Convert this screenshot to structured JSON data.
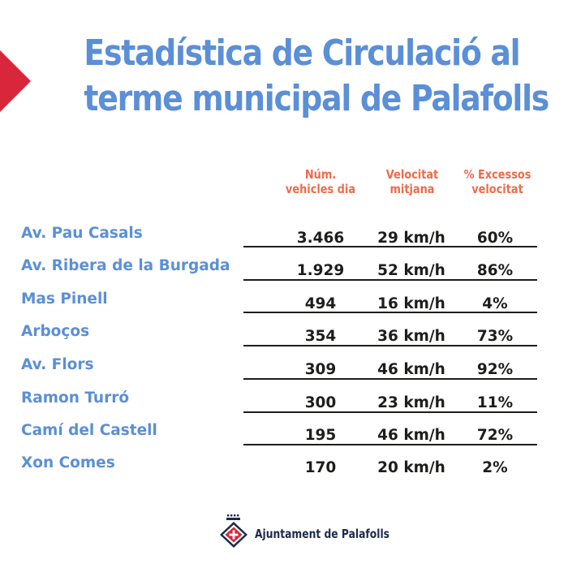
{
  "title": {
    "line1": "Estadística de Circulació al",
    "line2": "terme municipal de Palafolls"
  },
  "columns": {
    "vehicles": [
      "Núm.",
      "vehicles dia"
    ],
    "speed": [
      "Velocitat",
      "mitjana"
    ],
    "excess": [
      "% Excessos",
      "velocitat"
    ]
  },
  "rows": [
    {
      "street": "Av. Pau Casals",
      "vehicles": "3.466",
      "speed": "29 km/h",
      "excess": "60%"
    },
    {
      "street": "Av. Ribera de la Burgada",
      "vehicles": "1.929",
      "speed": "52 km/h",
      "excess": "86%"
    },
    {
      "street": "Mas Pinell",
      "vehicles": "494",
      "speed": "16 km/h",
      "excess": "4%"
    },
    {
      "street": "Arboços",
      "vehicles": "354",
      "speed": "36 km/h",
      "excess": "73%"
    },
    {
      "street": "Av. Flors",
      "vehicles": "309",
      "speed": "46 km/h",
      "excess": "92%"
    },
    {
      "street": "Ramon Turró",
      "vehicles": "300",
      "speed": "23 km/h",
      "excess": "11%"
    },
    {
      "street": "Camí del Castell",
      "vehicles": "195",
      "speed": "46 km/h",
      "excess": "72%"
    },
    {
      "street": "Xon Comes",
      "vehicles": "170",
      "speed": "20 km/h",
      "excess": "2%"
    }
  ],
  "footer": {
    "text": "Ajuntament de Palafolls",
    "logo_icon": "palafolls-coat-of-arms-icon"
  },
  "colors": {
    "title": "#5b8fd6",
    "header": "#ef6a4a",
    "street": "#5b8fd6",
    "value": "#1d1d1b",
    "accent": "#d9263a"
  }
}
